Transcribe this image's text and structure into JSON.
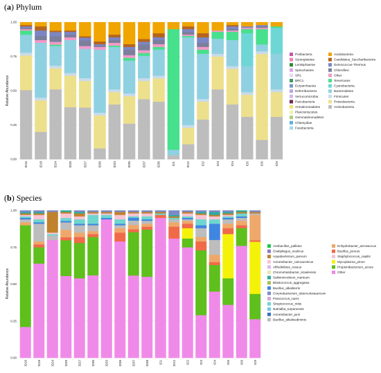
{
  "chart_data": [
    {
      "type": "bar",
      "stacked": true,
      "title_letter": "a",
      "title": "Phylum",
      "ylabel": "Relative Abundance",
      "ylim": [
        0,
        1
      ],
      "yticks": [
        "0.00",
        "0.25",
        "0.50",
        "0.75",
        "1.00"
      ],
      "categories": [
        "ID16",
        "ID18",
        "ID24",
        "ID26",
        "ID27",
        "ID30",
        "ID33",
        "ID36",
        "ID37",
        "ID38",
        "ID1",
        "ID12",
        "ID2",
        "ID3",
        "ID4",
        "ID5",
        "ID6",
        "ID9"
      ],
      "series": [
        {
          "name": "Actinobacteria",
          "color": "#bdbdbd",
          "values": [
            0.5,
            0.2,
            0.5,
            0.38,
            0.37,
            0.08,
            0.4,
            0.26,
            0.43,
            0.42,
            0.03,
            0.11,
            0.29,
            0.51,
            0.4,
            0.31,
            0.14,
            0.31
          ]
        },
        {
          "name": "Proteobacteria",
          "color": "#ede08c",
          "values": [
            0.25,
            0.23,
            0.15,
            0.23,
            0.19,
            0.24,
            0.09,
            0.2,
            0.13,
            0.17,
            0.0,
            0.12,
            0.13,
            0.24,
            0.26,
            0.16,
            0.62,
            0.18
          ]
        },
        {
          "name": "Firmicutes",
          "color": "#c8dbea",
          "values": [
            0.02,
            0.02,
            0.02,
            0.02,
            0.02,
            0.02,
            0.02,
            0.02,
            0.02,
            0.02,
            0.0,
            0.02,
            0.02,
            0.02,
            0.02,
            0.02,
            0.02,
            0.02
          ]
        },
        {
          "name": "Bacteroidetes",
          "color": "#8fd1e1",
          "values": [
            0.13,
            0.4,
            0.14,
            0.24,
            0.21,
            0.46,
            0.31,
            0.24,
            0.16,
            0.19,
            0.04,
            0.64,
            0.33,
            0.11,
            0.19,
            0.19,
            0.05,
            0.26
          ]
        },
        {
          "name": "Cyanobacteria",
          "color": "#6fd6d6",
          "values": [
            0,
            0,
            0,
            0,
            0,
            0,
            0,
            0,
            0,
            0,
            0,
            0,
            0,
            0,
            0,
            0.24,
            0,
            0.19
          ]
        },
        {
          "name": "Tenericutes",
          "color": "#47e08c",
          "values": [
            0.03,
            0.0,
            0.01,
            0.0,
            0.0,
            0.0,
            0.01,
            0.02,
            0.02,
            0.02,
            0.88,
            0.01,
            0.03,
            0.05,
            0.06,
            0.03,
            0.11,
            0.01
          ]
        },
        {
          "name": "Other",
          "color": "#f29ac8",
          "values": [
            0.01,
            0.02,
            0.02,
            0.02,
            0.02,
            0.02,
            0.02,
            0.02,
            0.02,
            0.02,
            0.0,
            0.01,
            0.02,
            0.01,
            0.01,
            0.01,
            0.01,
            0.0
          ]
        },
        {
          "name": "Chloroflexi",
          "color": "#7b7f9c",
          "values": [
            0.01,
            0.03,
            0.04,
            0.02,
            0.04,
            0.01,
            0.02,
            0.04,
            0.04,
            0.03,
            0.0,
            0.02,
            0.03,
            0.0,
            0.01,
            0.0,
            0.01,
            0.0
          ]
        },
        {
          "name": "Deinococcus-Thermus",
          "color": "#7c86c4",
          "values": [
            0.01,
            0.04,
            0.03,
            0.02,
            0.02,
            0.01,
            0.02,
            0.02,
            0.02,
            0.02,
            0.0,
            0.02,
            0.04,
            0.0,
            0.02,
            0.01,
            0.01,
            0.0
          ]
        },
        {
          "name": "Candidatus_Saccharibacteria",
          "color": "#b5651d",
          "values": [
            0.01,
            0.03,
            0.01,
            0.01,
            0.01,
            0.02,
            0.02,
            0.02,
            0.02,
            0.03,
            0.0,
            0.02,
            0.03,
            0.0,
            0.01,
            0.0,
            0.0,
            0.0
          ]
        },
        {
          "name": "Acidobacteria",
          "color": "#f0a500",
          "values": [
            0.02,
            0.03,
            0.06,
            0.06,
            0.1,
            0.14,
            0.09,
            0.16,
            0.12,
            0.08,
            0.05,
            0.03,
            0.08,
            0.06,
            0.02,
            0.03,
            0.02,
            0.03
          ]
        }
      ],
      "legend_col1": [
        "Poribacteria",
        "Synergistetes",
        "Lentisphaerae",
        "Spirochaetes",
        "SR1",
        "BRC1",
        "Euryarchaeota",
        "Deferribacteres",
        "Verrucomicrobia",
        "Parcubacteria",
        "Armatimonadetes",
        "Planctomycetes",
        "Gemmatimonadetes",
        "Chlamydiae",
        "Fusobacteria"
      ],
      "legend_col1_colors": [
        "#c05ab0",
        "#f27fb6",
        "#2f8a3a",
        "#d8a6e3",
        "#e8d5f0",
        "#3f9a68",
        "#7396c9",
        "#b9a6d8",
        "#d2b6e8",
        "#6e2a58",
        "#f2e26a",
        "#eff2a6",
        "#a7d07a",
        "#5ab1e0",
        "#a6d9ec"
      ],
      "legend_col2": [
        "Acidobacteria",
        "Candidatus_Saccharibacteria",
        "Deinococcus-Thermus",
        "Chloroflexi",
        "Other",
        "Tenericutes",
        "Cyanobacteria",
        "Bacteroidetes",
        "Firmicutes",
        "Proteobacteria",
        "Actinobacteria"
      ],
      "legend_col2_colors": [
        "#f0a500",
        "#b5651d",
        "#7c86c4",
        "#7b7f9c",
        "#f29ac8",
        "#47e08c",
        "#6fd6d6",
        "#8fd1e1",
        "#c8dbea",
        "#ede08c",
        "#bdbdbd"
      ]
    },
    {
      "type": "bar",
      "stacked": true,
      "title_letter": "b",
      "title": "Species",
      "ylabel": "Relative Abundance",
      "ylim": [
        0,
        1
      ],
      "yticks": [
        "0.00",
        "0.25",
        "0.50",
        "0.75",
        "1.00"
      ],
      "categories": [
        "ID16",
        "ID18",
        "ID24",
        "ID26",
        "ID27",
        "ID30",
        "ID33",
        "ID36",
        "ID37",
        "ID38",
        "ID1",
        "ID12",
        "ID2",
        "ID3",
        "ID4",
        "ID5",
        "ID6",
        "ID9"
      ],
      "series": [
        {
          "name": "Other",
          "color": "#f08ae8",
          "values": [
            0.21,
            0.64,
            0.8,
            0.55,
            0.54,
            0.56,
            0.94,
            0.79,
            0.57,
            0.55,
            0.95,
            0.81,
            0.75,
            0.29,
            0.45,
            0.36,
            0.76,
            0.26
          ]
        },
        {
          "name": "Propionibacterium_acnes",
          "color": "#5fbf1c",
          "values": [
            0.69,
            0.11,
            0.0,
            0.24,
            0.24,
            0.26,
            0.0,
            0.0,
            0.3,
            0.32,
            0.0,
            0.0,
            0.06,
            0.44,
            0.18,
            0.18,
            0.12,
            0.17
          ]
        },
        {
          "name": "Mycoplasma_pirum",
          "color": "#f5f20a",
          "values": [
            0,
            0,
            0,
            0,
            0,
            0,
            0,
            0,
            0,
            0,
            0,
            0,
            0.07,
            0,
            0,
            0.3,
            0,
            0.35
          ]
        },
        {
          "name": "Bacillus_pereus",
          "color": "#f06a4a",
          "values": [
            0.0,
            0.02,
            0.0,
            0.02,
            0.04,
            0.02,
            0.0,
            0.06,
            0.02,
            0.02,
            0.02,
            0.08,
            0.03,
            0.06,
            0.02,
            0.04,
            0.02,
            0.01
          ]
        },
        {
          "name": "Enhydrobacter_aerosaccus",
          "color": "#efa86b",
          "values": [
            0.02,
            0.02,
            0.0,
            0.05,
            0.03,
            0.02,
            0.0,
            0.03,
            0.03,
            0.02,
            0.0,
            0.03,
            0.02,
            0.03,
            0.05,
            0.03,
            0.03,
            0.17
          ]
        },
        {
          "name": "Bacillus_alkalisediminis",
          "color": "#bdbdbd",
          "values": [
            0.02,
            0.12,
            0.03,
            0.05,
            0.05,
            0.04,
            0.0,
            0.02,
            0.03,
            0.02,
            0.0,
            0.02,
            0.01,
            0.06,
            0.1,
            0.03,
            0.02,
            0.01
          ]
        },
        {
          "name": "Bacillus_alkaliterris",
          "color": "#3f86e0",
          "values": [
            0.01,
            0.01,
            0.0,
            0.01,
            0.01,
            0.01,
            0.01,
            0.01,
            0.02,
            0.01,
            0.0,
            0.0,
            0.01,
            0.02,
            0.11,
            0.01,
            0.01,
            0.0
          ]
        },
        {
          "name": "Streptococcus_mitis",
          "color": "#6fd6cf",
          "values": [
            0.01,
            0.02,
            0.01,
            0.02,
            0.03,
            0.06,
            0.02,
            0.03,
            0.01,
            0.02,
            0.01,
            0.01,
            0.01,
            0.04,
            0.03,
            0.01,
            0.02,
            0.0
          ]
        },
        {
          "name": "Staphylococcus_capitis",
          "color": "#f7c4d4",
          "values": [
            0.01,
            0.03,
            0.01,
            0.03,
            0.02,
            0.01,
            0.01,
            0.03,
            0.02,
            0.02,
            0.0,
            0.0,
            0.02,
            0.03,
            0.02,
            0.01,
            0.0,
            0.0
          ]
        },
        {
          "name": "Aquabacterium_parvum",
          "color": "#c0822c",
          "values": [
            0.01,
            0.01,
            0.14,
            0.01,
            0.02,
            0.01,
            0.01,
            0.02,
            0.01,
            0.01,
            0.01,
            0.01,
            0.01,
            0.01,
            0.01,
            0.01,
            0.01,
            0.01
          ]
        },
        {
          "name": "Salinimicrobium_marinum",
          "color": "#2faa9e",
          "values": [
            0.01,
            0.01,
            0.0,
            0.01,
            0.01,
            0.0,
            0.0,
            0.0,
            0.0,
            0.0,
            0.0,
            0.01,
            0.0,
            0.01,
            0.02,
            0.01,
            0.01,
            0.0
          ]
        },
        {
          "name": "Corynebacterium_tuberculostearicum",
          "color": "#7c8ac8",
          "values": [
            0.01,
            0.01,
            0.01,
            0.0,
            0.01,
            0.01,
            0.01,
            0.01,
            0.01,
            0.01,
            0.01,
            0.03,
            0.01,
            0.01,
            0.01,
            0.01,
            0.0,
            0.01
          ]
        }
      ],
      "legend_col1": [
        "Aeribacillus_pallidus",
        "Ovalipilagus_ovalicus",
        "Aquabacterium_parvum",
        "Acinetobacter_calcoaceticus",
        "Afifodinibius_roseus",
        "Chromohalobacter_israelensis",
        "Salinimicrobium_marinum",
        "Blastococcus_aggregatus",
        "Bacillus_alkaliterris",
        "Corynebacterium_tuberculostearicum",
        "Paracoccus_caeni",
        "Streptococcus_mitis",
        "Natrialba_turpanensis",
        "Acinetobacter_junii",
        "Bacillus_alkalisediminis"
      ],
      "legend_col1_colors": [
        "#22c64a",
        "#8a7cc0",
        "#c0822c",
        "#f7c4d4",
        "#e0b7ec",
        "#e8e8a8",
        "#2faa9e",
        "#a4c24a",
        "#3f86e0",
        "#7c8ac8",
        "#d6a8d8",
        "#6fd6cf",
        "#70c8f0",
        "#3b6fc2",
        "#bdbdbd"
      ],
      "legend_col2": [
        "Enhydrobacter_aerosaccus",
        "Bacillus_pereus",
        "Staphylococcus_capitis",
        "Mycoplasma_pirum",
        "Propionibacterium_acnes",
        "Other"
      ],
      "legend_col2_colors": [
        "#efa86b",
        "#f06a4a",
        "#f7c4d4",
        "#f5f20a",
        "#5fbf1c",
        "#f08ae8"
      ]
    }
  ]
}
